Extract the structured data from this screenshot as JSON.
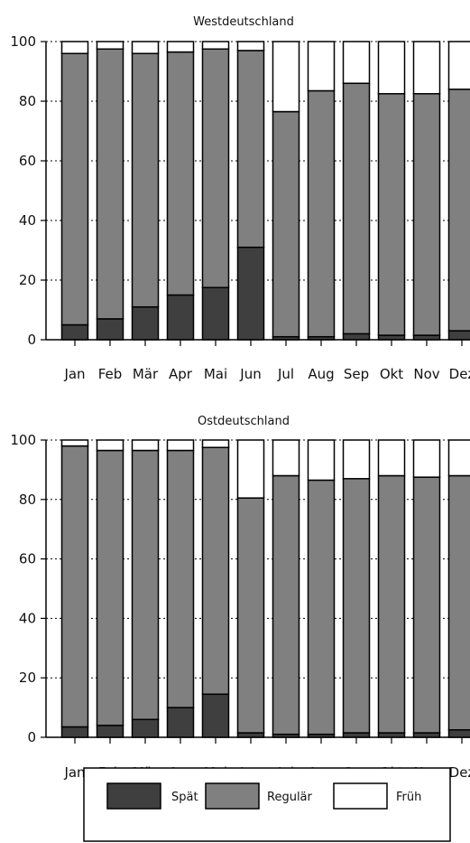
{
  "colors": {
    "spaet": "#3f3f3f",
    "regulaer": "#808080",
    "frueh": "#ffffff",
    "stroke": "#000000"
  },
  "chart_data": [
    {
      "type": "bar",
      "stacked": true,
      "title": "Westdeutschland",
      "categories": [
        "Jan",
        "Feb",
        "Mär",
        "Apr",
        "Mai",
        "Jun",
        "Jul",
        "Aug",
        "Sep",
        "Okt",
        "Nov",
        "Dez"
      ],
      "ylim": [
        0,
        100
      ],
      "yticks": [
        0,
        20,
        40,
        60,
        80,
        100
      ],
      "grid": "dotted horizontal",
      "series": [
        {
          "name": "Spät",
          "values": [
            5,
            7,
            11,
            15,
            17.5,
            31,
            1,
            1,
            2,
            1.5,
            1.5,
            3
          ]
        },
        {
          "name": "Regulär",
          "values": [
            91,
            90.5,
            85,
            81.5,
            80,
            66,
            75.5,
            82.5,
            84,
            81,
            81,
            81
          ]
        },
        {
          "name": "Früh",
          "values": [
            4,
            2.5,
            4,
            3.5,
            2.5,
            3,
            23.5,
            16.5,
            14,
            17.5,
            17.5,
            16
          ]
        }
      ]
    },
    {
      "type": "bar",
      "stacked": true,
      "title": "Ostdeutschland",
      "categories": [
        "Jan",
        "Feb",
        "Mär",
        "Apr",
        "Mai",
        "Jun",
        "Jul",
        "Aug",
        "Sep",
        "Okt",
        "Nov",
        "Dez"
      ],
      "ylim": [
        0,
        100
      ],
      "yticks": [
        0,
        20,
        40,
        60,
        80,
        100
      ],
      "grid": "dotted horizontal",
      "series": [
        {
          "name": "Spät",
          "values": [
            3.5,
            4,
            6,
            10,
            14.5,
            1.5,
            1,
            1,
            1.5,
            1.5,
            1.5,
            2.5
          ]
        },
        {
          "name": "Regulär",
          "values": [
            94.5,
            92.5,
            90.5,
            86.5,
            83,
            79,
            87,
            85.5,
            85.5,
            86.5,
            86,
            85.5
          ]
        },
        {
          "name": "Früh",
          "values": [
            2,
            3.5,
            3.5,
            3.5,
            2.5,
            19.5,
            12,
            13.5,
            13,
            12,
            12.5,
            12
          ]
        }
      ]
    }
  ],
  "legend": {
    "position": "bottom",
    "items": [
      {
        "label": "Spät",
        "color": "#3f3f3f"
      },
      {
        "label": "Regulär",
        "color": "#808080"
      },
      {
        "label": "Früh",
        "color": "#ffffff"
      }
    ]
  }
}
